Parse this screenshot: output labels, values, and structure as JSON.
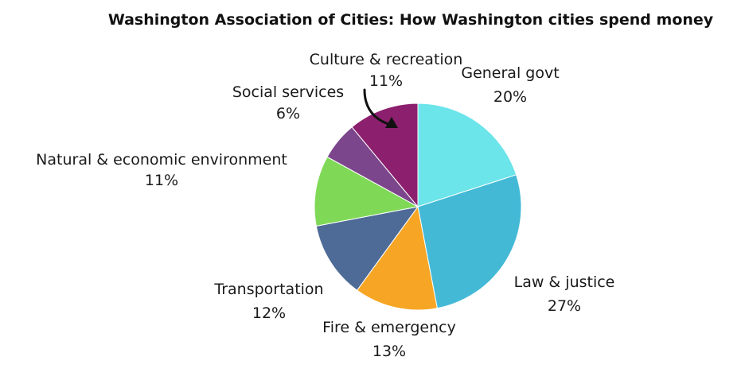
{
  "chart_data": {
    "type": "pie",
    "title": "Washington Association of Cities: How Washington cities spend money",
    "slices": [
      {
        "label": "General govt",
        "value": 20,
        "value_label": "20%",
        "color": "#6be4ea"
      },
      {
        "label": "Law & justice",
        "value": 27,
        "value_label": "27%",
        "color": "#43b9d6"
      },
      {
        "label": "Fire & emergency",
        "value": 13,
        "value_label": "13%",
        "color": "#f6a624"
      },
      {
        "label": "Transportation",
        "value": 12,
        "value_label": "12%",
        "color": "#4e6b97"
      },
      {
        "label": "Natural & economic environment",
        "value": 11,
        "value_label": "11%",
        "color": "#7fd957"
      },
      {
        "label": "Social services",
        "value": 6,
        "value_label": "6%",
        "color": "#7b468b"
      },
      {
        "label": "Culture & recreation",
        "value": 11,
        "value_label": "11%",
        "color": "#8c1f6e"
      }
    ],
    "start": "top, clockwise",
    "legend": "none"
  }
}
